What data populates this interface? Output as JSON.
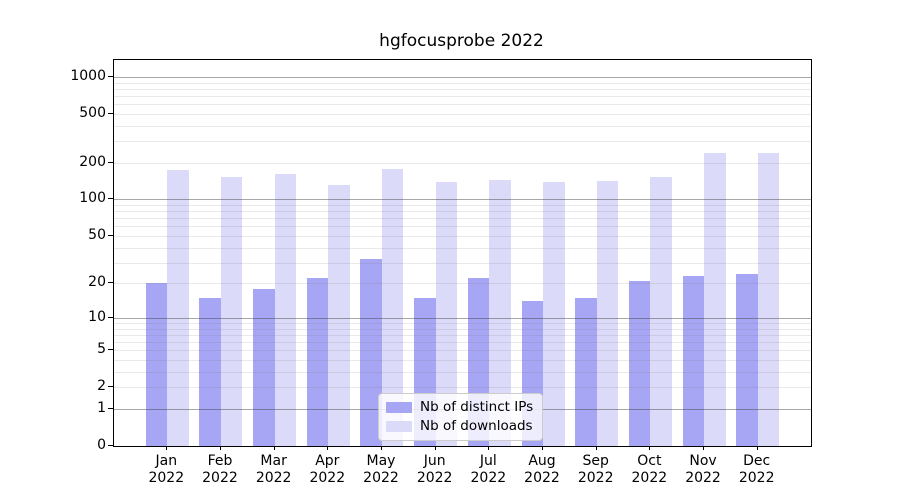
{
  "chart_data": {
    "type": "bar",
    "title": "hgfocusprobe 2022",
    "categories": [
      "Jan",
      "Feb",
      "Mar",
      "Apr",
      "May",
      "Jun",
      "Jul",
      "Aug",
      "Sep",
      "Oct",
      "Nov",
      "Dec"
    ],
    "x_sublabel": "2022",
    "series": [
      {
        "name": "Nb of distinct IPs",
        "color": "#a6a6f4",
        "values": [
          20,
          15,
          18,
          22,
          32,
          15,
          22,
          14,
          15,
          21,
          23,
          24
        ]
      },
      {
        "name": "Nb of downloads",
        "color": "#dbdbf9",
        "values": [
          173,
          152,
          161,
          131,
          176,
          138,
          144,
          138,
          141,
          152,
          238,
          238
        ]
      }
    ],
    "y_axis": {
      "scale": "log1p",
      "tick_labels": [
        0,
        1,
        2,
        5,
        10,
        20,
        50,
        100,
        200,
        500,
        1000
      ],
      "top_value": 1372,
      "major_gridlines": [
        1,
        10,
        100,
        1000
      ],
      "minor_gridlines": [
        2,
        3,
        4,
        5,
        6,
        7,
        8,
        9,
        20,
        30,
        40,
        50,
        60,
        70,
        80,
        90,
        200,
        300,
        400,
        500,
        600,
        700,
        800,
        900
      ]
    },
    "legend": {
      "position": "lower center",
      "entries": [
        "Nb of distinct IPs",
        "Nb of downloads"
      ]
    },
    "grid": true,
    "xlabel": "",
    "ylabel": ""
  }
}
